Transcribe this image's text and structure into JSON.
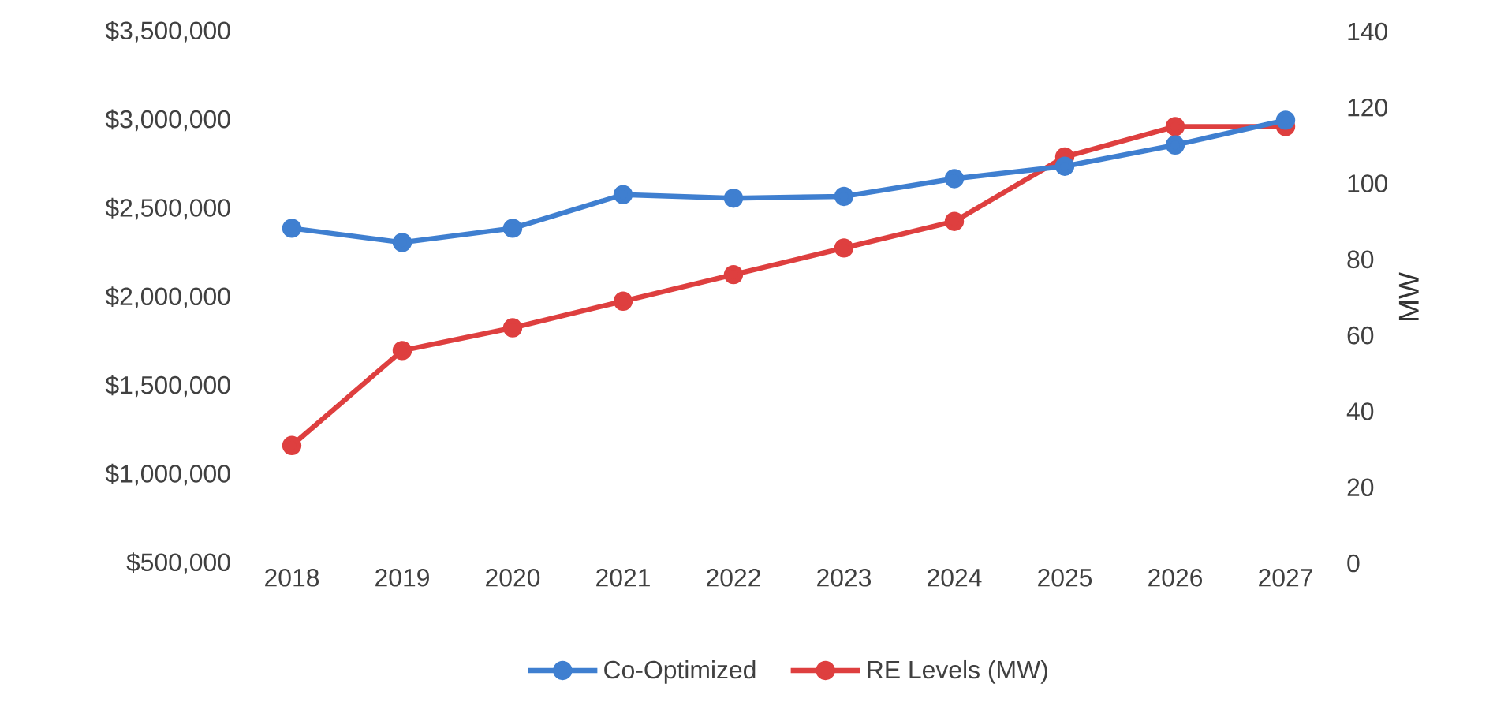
{
  "chart_data": {
    "type": "line",
    "categories": [
      "2018",
      "2019",
      "2020",
      "2021",
      "2022",
      "2023",
      "2024",
      "2025",
      "2026",
      "2027"
    ],
    "series": [
      {
        "name": "Co-Optimized",
        "color": "#3f7fd0",
        "values": [
          2390000,
          2310000,
          2390000,
          2580000,
          2560000,
          2570000,
          2670000,
          2740000,
          2860000,
          3000000
        ]
      },
      {
        "name": "RE Levels (MW)",
        "color": "#de3f3f",
        "axis": "y2",
        "values": [
          31,
          56,
          62,
          69,
          76,
          83,
          90,
          107,
          115,
          115
        ]
      }
    ],
    "ylim": [
      500000,
      3500000
    ],
    "yticks": [
      {
        "value": 500000,
        "label": "$500,000"
      },
      {
        "value": 1000000,
        "label": "$1,000,000"
      },
      {
        "value": 1500000,
        "label": "$1,500,000"
      },
      {
        "value": 2000000,
        "label": "$2,000,000"
      },
      {
        "value": 2500000,
        "label": "$2,500,000"
      },
      {
        "value": 3000000,
        "label": "$3,000,000"
      },
      {
        "value": 3500000,
        "label": "$3,500,000"
      }
    ],
    "y2lim": [
      0,
      140
    ],
    "y2ticks": [
      0,
      20,
      40,
      60,
      80,
      100,
      120,
      140
    ],
    "y2label": "MW",
    "legend": "bottom",
    "marker": "circle"
  }
}
